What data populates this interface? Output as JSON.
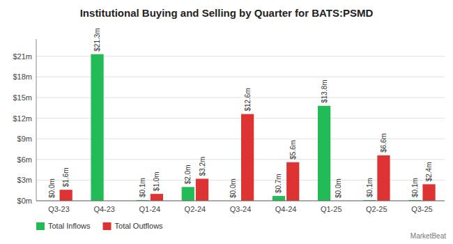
{
  "chart_data": {
    "type": "bar",
    "title": "Institutional Buying and Selling by Quarter for BATS:PSMD",
    "categories": [
      "Q3-23",
      "Q4-23",
      "Q1-24",
      "Q2-24",
      "Q3-24",
      "Q4-24",
      "Q1-25",
      "Q2-25",
      "Q3-25"
    ],
    "series": [
      {
        "name": "Total Inflows",
        "color": "#22bb55",
        "values": [
          0.0,
          21.3,
          0.1,
          2.0,
          0.0,
          0.7,
          13.8,
          0.1,
          0.1
        ],
        "value_labels": [
          "$0.0m",
          "$21.3m",
          "$0.1m",
          "$2.0m",
          "$0.0m",
          "$0.7m",
          "$13.8m",
          "$0.1m",
          "$0.1m"
        ]
      },
      {
        "name": "Total Outflows",
        "color": "#dd3333",
        "values": [
          1.6,
          0.0,
          1.0,
          3.2,
          12.6,
          5.6,
          0.0,
          6.6,
          2.4
        ],
        "value_labels": [
          "$1.6m",
          null,
          "$1.0m",
          "$3.2m",
          "$12.6m",
          "$5.6m",
          "$0.0m",
          "$6.6m",
          "$2.4m"
        ]
      }
    ],
    "ylim": [
      0,
      23.5
    ],
    "yticks": [
      {
        "value": 0,
        "label": "$0m"
      },
      {
        "value": 3,
        "label": "$3m"
      },
      {
        "value": 6,
        "label": "$6m"
      },
      {
        "value": 9,
        "label": "$9m"
      },
      {
        "value": 12,
        "label": "$12m"
      },
      {
        "value": 15,
        "label": "$15m"
      },
      {
        "value": 18,
        "label": "$18m"
      },
      {
        "value": 21,
        "label": "$21m"
      }
    ],
    "grid": true,
    "legend": "bottom",
    "data_labels": true,
    "annotations": [
      "MarketBeat"
    ]
  }
}
